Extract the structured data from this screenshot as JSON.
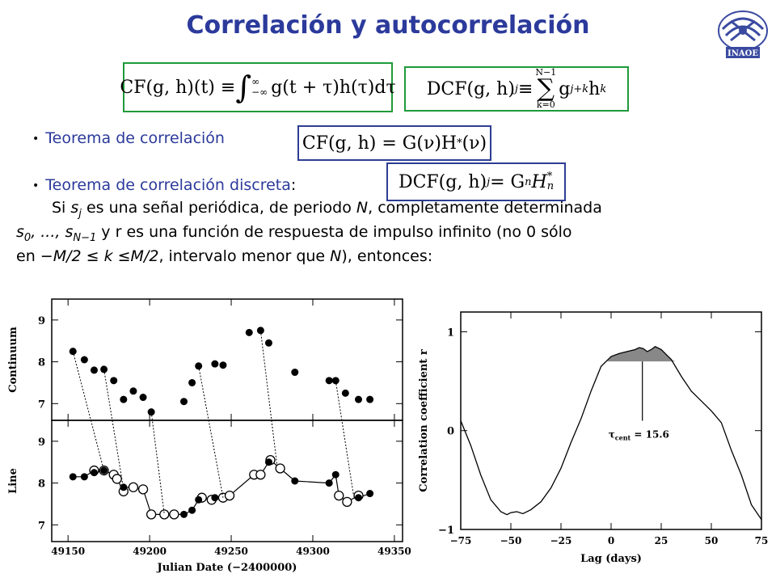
{
  "slide": {
    "title": "Correlación y autocorrelación",
    "logo_text": "INAOE"
  },
  "formulas": {
    "cf_left": "CF(g, h)(t) ≡",
    "cf_upper": "∞",
    "cf_lower": "−∞",
    "cf_right": "g(t + τ)h(τ)dτ",
    "dcf_left": "DCF(g, h)",
    "dcf_j": "j",
    "dcf_eq": " ≡ ",
    "dcf_sum_upper": "N−1",
    "dcf_sum_lower": "k=0",
    "dcf_right_g": "g",
    "dcf_right_sub": "j+k",
    "dcf_right_h": "h",
    "dcf_right_hsub": "k",
    "thm1": "CF(g, h) = G(ν)H",
    "thm1_sup": "*",
    "thm1_end": "(ν)",
    "thm2_left": "DCF(g, h)",
    "thm2_sub": "j",
    "thm2_mid": " = G",
    "thm2_gsub": "n",
    "thm2_h": "H",
    "thm2_hsub": "n",
    "thm2_hsup": "*"
  },
  "bullets": [
    {
      "text": "Teorema de correlación"
    },
    {
      "text": "Teorema de correlación discreta",
      "suffix": ":"
    }
  ],
  "paragraph": {
    "line1_a": "Si ",
    "line1_s": "s",
    "line1_j": "j",
    "line1_b": " es una señal periódica, de periodo ",
    "line1_N": "N",
    "line1_c": ", completamente determinada",
    "line2_s0": "s",
    "line2_0": "0",
    "line2_a": ", ..., ",
    "line2_sN": "s",
    "line2_N1": "N−1",
    "line2_b": " y r es una función de respuesta de impulso infinito (no 0 sólo",
    "line3_a": "en ",
    "line3_b": "−M/2 ≤ k ≤M/2",
    "line3_c": ", intervalo menor que ",
    "line3_N": "N",
    "line3_d": "), entonces:"
  },
  "chart_data": [
    {
      "type": "scatter",
      "panels": [
        {
          "ylabel": "Continuum",
          "ylim": [
            6.6,
            9.5
          ],
          "yticks": [
            "7",
            "8",
            "9"
          ],
          "points_filled": [
            [
              49153,
              8.25
            ],
            [
              49160,
              8.05
            ],
            [
              49166,
              7.8
            ],
            [
              49172,
              7.82
            ],
            [
              49178,
              7.55
            ],
            [
              49184,
              7.1
            ],
            [
              49190,
              7.3
            ],
            [
              49196,
              7.15
            ],
            [
              49201,
              6.8
            ],
            [
              49221,
              7.05
            ],
            [
              49226,
              7.5
            ],
            [
              49230,
              7.9
            ],
            [
              49240,
              7.95
            ],
            [
              49245,
              7.92
            ],
            [
              49261,
              8.7
            ],
            [
              49268,
              8.75
            ],
            [
              49273,
              8.45
            ],
            [
              49289,
              7.75
            ],
            [
              49310,
              7.55
            ],
            [
              49314,
              7.55
            ],
            [
              49320,
              7.25
            ],
            [
              49328,
              7.1
            ],
            [
              49335,
              7.1
            ]
          ]
        },
        {
          "ylabel": "Line",
          "ylim": [
            6.6,
            9.5
          ],
          "yticks": [
            "7",
            "8",
            "9"
          ],
          "points_filled": [
            [
              49153,
              8.15
            ],
            [
              49160,
              8.15
            ],
            [
              49166,
              8.25
            ],
            [
              49172,
              8.3
            ],
            [
              49184,
              7.9
            ],
            [
              49221,
              7.25
            ],
            [
              49226,
              7.35
            ],
            [
              49230,
              7.6
            ],
            [
              49240,
              7.65
            ],
            [
              49273,
              8.5
            ],
            [
              49289,
              8.05
            ],
            [
              49310,
              8.0
            ],
            [
              49314,
              8.2
            ],
            [
              49328,
              7.65
            ],
            [
              49335,
              7.75
            ]
          ],
          "points_open": [
            [
              49166,
              8.3
            ],
            [
              49172,
              8.3
            ],
            [
              49178,
              8.2
            ],
            [
              49180,
              8.1
            ],
            [
              49184,
              7.8
            ],
            [
              49190,
              7.9
            ],
            [
              49196,
              7.85
            ],
            [
              49201,
              7.25
            ],
            [
              49209,
              7.25
            ],
            [
              49215,
              7.25
            ],
            [
              49232,
              7.65
            ],
            [
              49238,
              7.6
            ],
            [
              49245,
              7.65
            ],
            [
              49249,
              7.7
            ],
            [
              49264,
              8.2
            ],
            [
              49268,
              8.2
            ],
            [
              49274,
              8.55
            ],
            [
              49280,
              8.35
            ],
            [
              49316,
              7.7
            ],
            [
              49321,
              7.55
            ],
            [
              49328,
              7.7
            ]
          ]
        }
      ],
      "xlabel": "Julian Date (−2400000)",
      "xlim": [
        49140,
        49355
      ],
      "xticks": [
        "49150",
        "49200",
        "49250",
        "49300",
        "49350"
      ]
    },
    {
      "type": "line",
      "xlabel": "Lag (days)",
      "ylabel": "Correlation coefficient r",
      "xlim": [
        -75,
        75
      ],
      "ylim": [
        -1,
        1.2
      ],
      "xticks": [
        "−75",
        "−50",
        "−25",
        "0",
        "25",
        "50",
        "75"
      ],
      "yticks": [
        "−1",
        "0",
        "1"
      ],
      "annotation": "τcent = 15.6",
      "annotation_main": "τ",
      "annotation_sub": "cent",
      "annotation_value": " = 15.6",
      "x": [
        -75,
        -70,
        -65,
        -60,
        -55,
        -52,
        -50,
        -47,
        -44,
        -40,
        -35,
        -30,
        -25,
        -20,
        -15,
        -10,
        -5,
        0,
        4,
        8,
        12,
        14,
        16,
        18,
        20,
        22,
        25,
        28,
        30,
        35,
        40,
        45,
        50,
        55,
        60,
        65,
        70,
        75
      ],
      "y": [
        0.1,
        -0.15,
        -0.45,
        -0.7,
        -0.82,
        -0.85,
        -0.83,
        -0.82,
        -0.84,
        -0.8,
        -0.72,
        -0.58,
        -0.38,
        -0.12,
        0.12,
        0.4,
        0.65,
        0.75,
        0.78,
        0.8,
        0.82,
        0.84,
        0.83,
        0.8,
        0.82,
        0.85,
        0.82,
        0.76,
        0.72,
        0.55,
        0.4,
        0.3,
        0.2,
        0.08,
        -0.2,
        -0.45,
        -0.75,
        -0.9
      ],
      "shade_threshold": 0.7
    }
  ]
}
